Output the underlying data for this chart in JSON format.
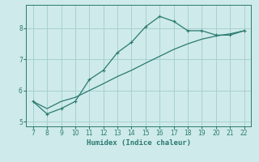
{
  "xlabel": "Humidex (Indice chaleur)",
  "bg_color": "#ceeaea",
  "grid_color": "#a8d0d0",
  "line_color": "#2a7a70",
  "x_data": [
    7,
    8,
    9,
    10,
    11,
    12,
    13,
    14,
    15,
    16,
    17,
    18,
    19,
    20,
    21,
    22
  ],
  "y_data": [
    5.65,
    5.25,
    5.42,
    5.65,
    6.35,
    6.65,
    7.22,
    7.55,
    8.05,
    8.38,
    8.22,
    7.92,
    7.92,
    7.78,
    7.78,
    7.92
  ],
  "y_line2": [
    5.65,
    5.42,
    5.65,
    5.78,
    6.0,
    6.22,
    6.45,
    6.65,
    6.88,
    7.1,
    7.32,
    7.5,
    7.65,
    7.75,
    7.82,
    7.92
  ],
  "xlim": [
    6.5,
    22.5
  ],
  "ylim": [
    4.85,
    8.75
  ],
  "xticks": [
    7,
    8,
    9,
    10,
    11,
    12,
    13,
    14,
    15,
    16,
    17,
    18,
    19,
    20,
    21,
    22
  ],
  "yticks": [
    5,
    6,
    7,
    8
  ],
  "tick_fontsize": 5.5,
  "xlabel_fontsize": 6.5,
  "linewidth": 0.9,
  "markersize": 3.0
}
